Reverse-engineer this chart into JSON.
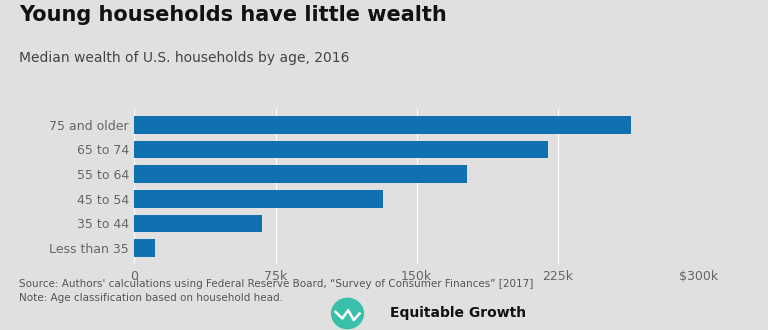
{
  "title": "Young households have little wealth",
  "subtitle": "Median wealth of U.S. households by age, 2016",
  "categories": [
    "Less than 35",
    "35 to 44",
    "45 to 54",
    "55 to 64",
    "65 to 74",
    "75 and older"
  ],
  "values": [
    11000,
    68000,
    132000,
    177000,
    220000,
    264000
  ],
  "bar_color": "#1070b0",
  "background_color": "#e0e0e0",
  "xlim": [
    0,
    300000
  ],
  "xtick_values": [
    0,
    75000,
    150000,
    225000,
    300000
  ],
  "xtick_labels": [
    "0",
    "75k",
    "150k",
    "225k",
    "$300k"
  ],
  "source_text": "Source: Authors' calculations using Federal Reserve Board, “Survey of Consumer Finances” [2017]\nNote: Age classification based on household head.",
  "title_fontsize": 15,
  "subtitle_fontsize": 10,
  "tick_fontsize": 9,
  "source_fontsize": 7.5,
  "bar_height": 0.72
}
